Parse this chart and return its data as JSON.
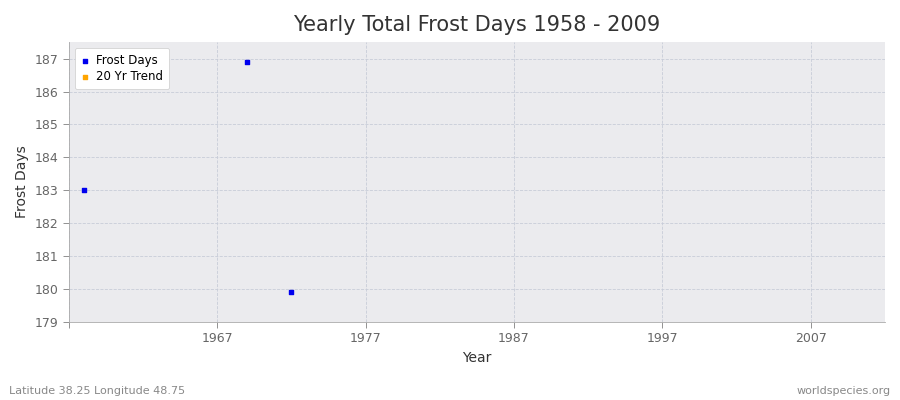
{
  "title": "Yearly Total Frost Days 1958 - 2009",
  "xlabel": "Year",
  "ylabel": "Frost Days",
  "fig_bg_color": "#ffffff",
  "plot_bg_color": "#ebebee",
  "frost_days_color": "#0000ee",
  "trend_color": "#ffa500",
  "legend_labels": [
    "Frost Days",
    "20 Yr Trend"
  ],
  "scatter_points": [
    {
      "year": 1958,
      "value": 183
    },
    {
      "year": 1969,
      "value": 186.9
    },
    {
      "year": 1972,
      "value": 179.9
    }
  ],
  "xlim": [
    1957,
    2012
  ],
  "ylim": [
    179,
    187.5
  ],
  "yticks": [
    179,
    180,
    181,
    182,
    183,
    184,
    185,
    186,
    187
  ],
  "xticks": [
    1957,
    1967,
    1977,
    1987,
    1997,
    2007
  ],
  "xtick_labels": [
    "",
    "1967",
    "1977",
    "1987",
    "1997",
    "2007"
  ],
  "footer_left": "Latitude 38.25 Longitude 48.75",
  "footer_right": "worldspecies.org",
  "title_fontsize": 15,
  "axis_label_fontsize": 10,
  "tick_fontsize": 9,
  "footer_fontsize": 8,
  "grid_color": "#c8ccd8",
  "spine_color": "#aaaaaa",
  "tick_color": "#666666",
  "label_color": "#333333"
}
